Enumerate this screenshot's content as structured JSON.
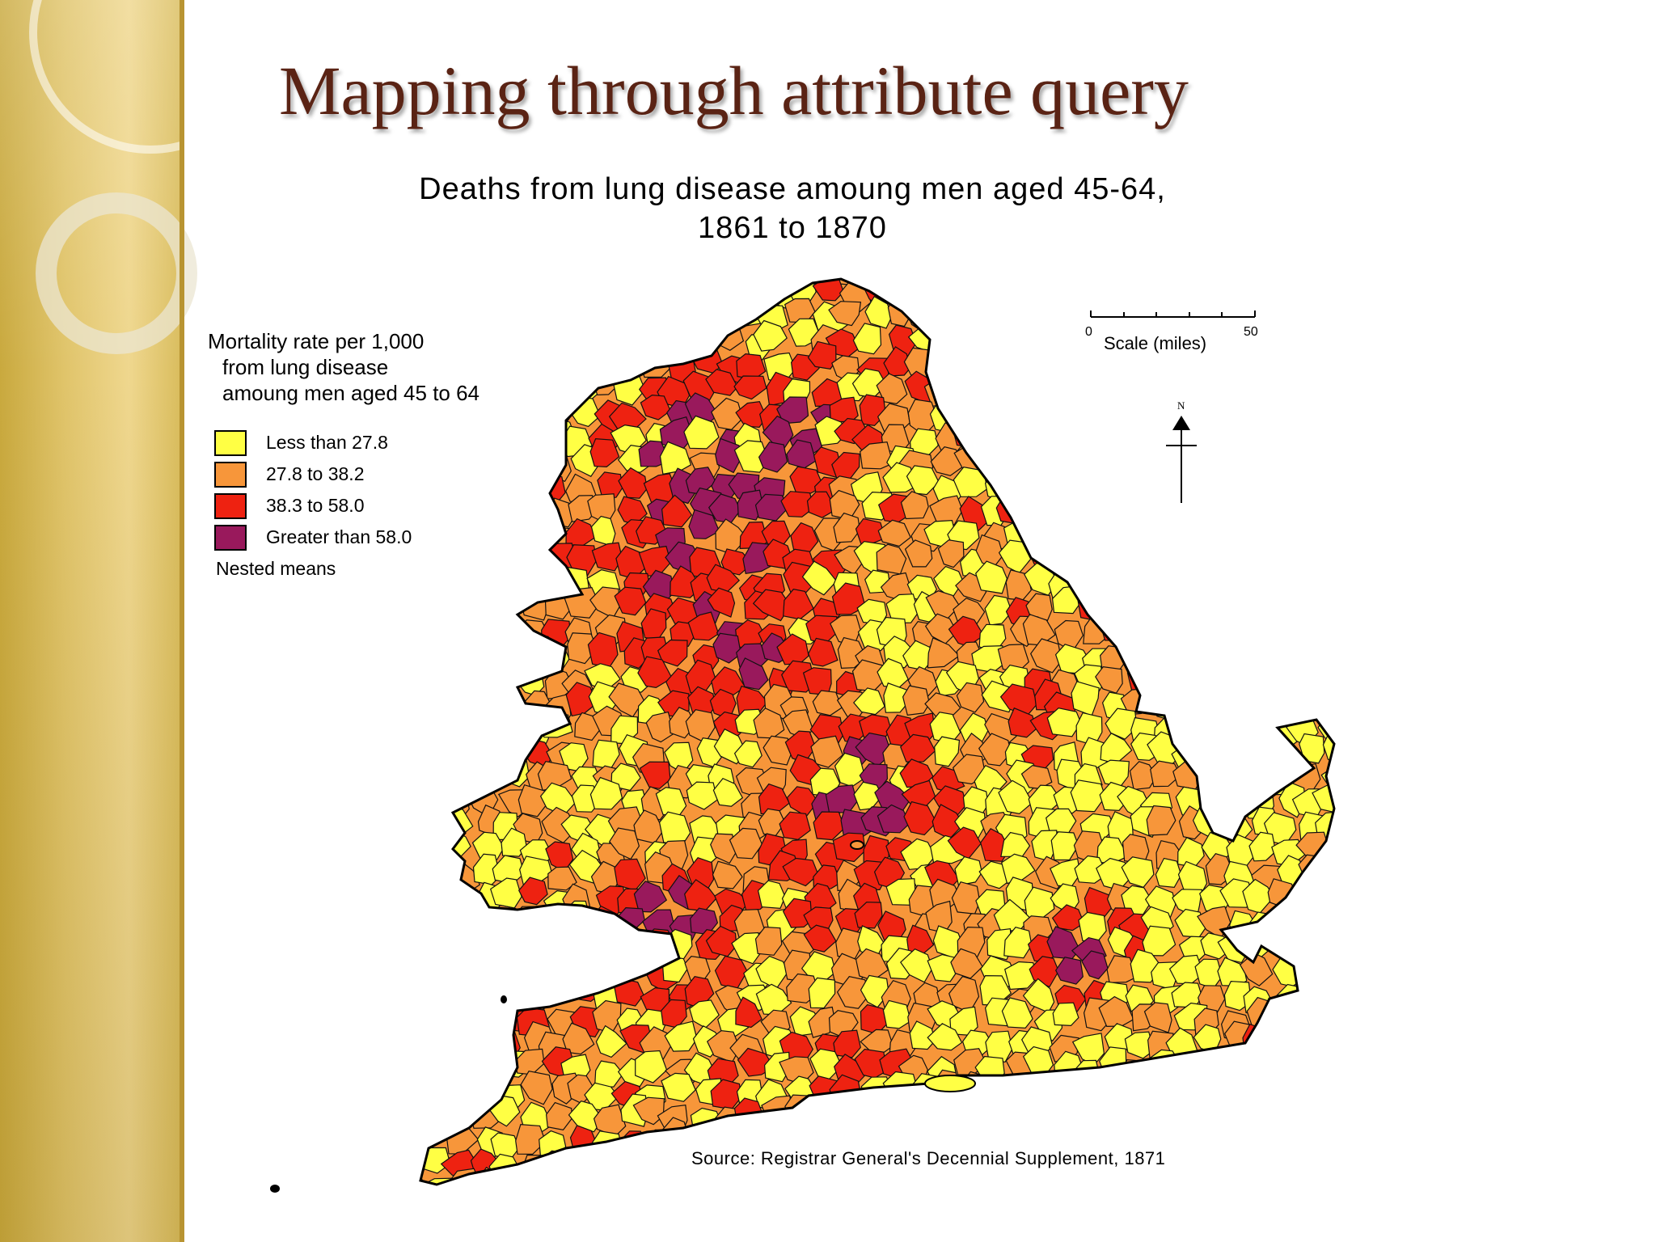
{
  "slide": {
    "title": "Mapping through attribute query"
  },
  "map": {
    "title_line1": "Deaths from lung disease amoung men aged 45-64,",
    "title_line2": "1861 to 1870",
    "source": "Source: Registrar General's Decennial Supplement, 1871"
  },
  "legend": {
    "title_line1": "Mortality rate per 1,000",
    "title_line2": "from lung disease",
    "title_line3": "amoung men aged 45 to 64",
    "classes": [
      {
        "label": "Less than 27.8",
        "color": "#ffff44"
      },
      {
        "label": "27.8 to 38.2",
        "color": "#f7963a"
      },
      {
        "label": "38.3 to 58.0",
        "color": "#ee2211"
      },
      {
        "label": "Greater than 58.0",
        "color": "#99195c"
      }
    ],
    "method": "Nested means"
  },
  "scale": {
    "label": "Scale (miles)",
    "min": "0",
    "max": "50"
  },
  "north": {
    "label": "N",
    "icon": "north-arrow-icon"
  }
}
